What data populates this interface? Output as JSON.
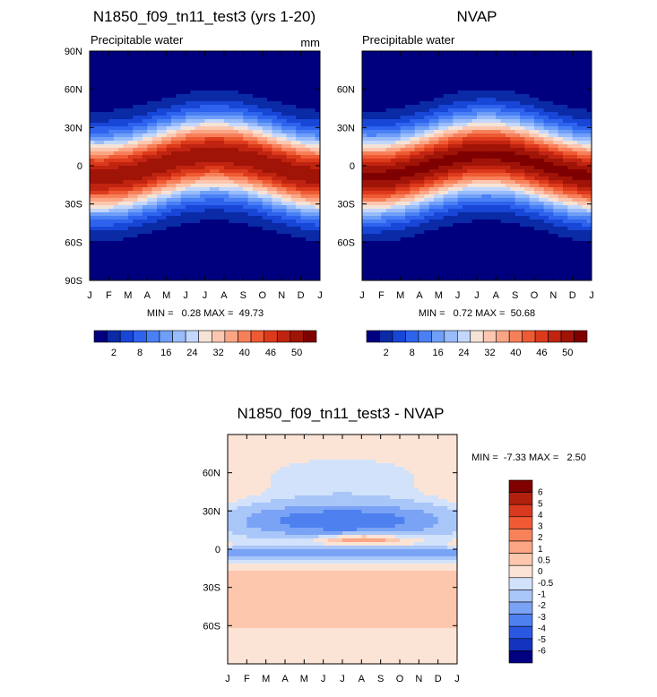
{
  "chart_data": [
    {
      "type": "heatmap",
      "title": "N1850_f09_tn11_test3 (yrs 1-20)",
      "subtitle": "Precipitable water",
      "units": "mm",
      "x_ticks": [
        "J",
        "F",
        "M",
        "A",
        "M",
        "J",
        "J",
        "A",
        "S",
        "O",
        "N",
        "D",
        "J"
      ],
      "y_ticks": [
        "90N",
        "60N",
        "30N",
        "0",
        "30S",
        "60S",
        "90S"
      ],
      "stats": "MIN =   0.28 MAX =  49.73",
      "colorbar": {
        "labels": [
          "2",
          "8",
          "16",
          "24",
          "32",
          "40",
          "46",
          "50"
        ],
        "colors": [
          "#00007f",
          "#0a2aa6",
          "#1846d6",
          "#2e63ee",
          "#4a80f5",
          "#6f9ff8",
          "#99bcfa",
          "#c3d7fc",
          "#f5e3d7",
          "#fbc7b0",
          "#fba585",
          "#f7805a",
          "#ee5a33",
          "#dd3a1c",
          "#c02410",
          "#a01408",
          "#7f0000"
        ]
      }
    },
    {
      "type": "heatmap",
      "title": "NVAP",
      "subtitle": "Precipitable water",
      "x_ticks": [
        "J",
        "F",
        "M",
        "A",
        "M",
        "J",
        "J",
        "A",
        "S",
        "O",
        "N",
        "D",
        "J"
      ],
      "y_ticks": [
        "60N",
        "30N",
        "0",
        "30S",
        "60S"
      ],
      "stats": "MIN =   0.72 MAX =  50.68",
      "colorbar": {
        "labels": [
          "2",
          "8",
          "16",
          "24",
          "32",
          "40",
          "46",
          "50"
        ]
      }
    },
    {
      "type": "heatmap",
      "title": "N1850_f09_tn11_test3 - NVAP",
      "x_ticks": [
        "J",
        "F",
        "M",
        "A",
        "M",
        "J",
        "J",
        "A",
        "S",
        "O",
        "N",
        "D",
        "J"
      ],
      "y_ticks": [
        "60N",
        "30N",
        "0",
        "30S",
        "60S"
      ],
      "stats": "MIN =  -7.33 MAX =   2.50",
      "colorbar": {
        "labels": [
          "6",
          "5",
          "4",
          "3",
          "2",
          "1",
          "0.5",
          "0",
          "-0.5",
          "-1",
          "-2",
          "-3",
          "-4",
          "-5",
          "-6"
        ],
        "colors": [
          "#800000",
          "#b2200e",
          "#d8391f",
          "#ef5a35",
          "#f78158",
          "#fca585",
          "#fdc7ae",
          "#fbe4d5",
          "#d2e2fb",
          "#a9c6f9",
          "#7aa3f5",
          "#4e80ef",
          "#2b58e3",
          "#1434bf",
          "#000080"
        ]
      }
    }
  ]
}
